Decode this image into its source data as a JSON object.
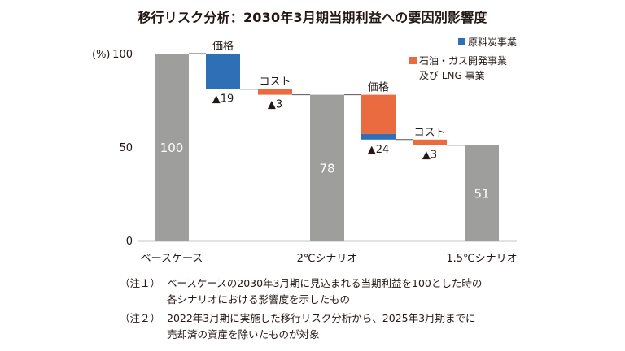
{
  "title": "移行リスク分析：2030年3月期当期利益への要因別影響度",
  "colors": {
    "base": "#9e9e9d",
    "coal": "#2f6fb5",
    "oil": "#ea6b3f",
    "connector": "#555555",
    "axis": "#231815"
  },
  "chart_data": {
    "type": "bar",
    "subtype": "waterfall",
    "title": "移行リスク分析：2030年3月期当期利益への要因別影響度",
    "y_unit": "(%)",
    "ylim": [
      0,
      100
    ],
    "yticks": [
      0,
      50,
      100
    ],
    "grid": false,
    "legend_position": "top-right",
    "legend": [
      {
        "name": "原料炭事業",
        "color": "#2f6fb5"
      },
      {
        "name": "石油・ガス開発事業",
        "name2": "及び LNG 事業",
        "color": "#ea6b3f"
      }
    ],
    "categories": [
      "ベースケース",
      "2℃シナリオ",
      "1.5℃シナリオ"
    ],
    "bars": [
      {
        "kind": "total",
        "value": 100,
        "label": "100",
        "category": "ベースケース"
      },
      {
        "kind": "delta",
        "from": 100,
        "to": 81,
        "label": "▲19",
        "top_label": "価格",
        "segments": [
          {
            "series": "原料炭事業",
            "from": 100,
            "to": 81
          }
        ]
      },
      {
        "kind": "delta",
        "from": 81,
        "to": 78,
        "label": "▲3",
        "top_label": "コスト",
        "segments": [
          {
            "series": "石油・ガス開発事業",
            "from": 81,
            "to": 78
          }
        ]
      },
      {
        "kind": "total",
        "value": 78,
        "label": "78",
        "category": "2℃シナリオ"
      },
      {
        "kind": "delta",
        "from": 78,
        "to": 54,
        "label": "▲24",
        "top_label": "価格",
        "segments": [
          {
            "series": "石油・ガス開発事業",
            "from": 78,
            "to": 57
          },
          {
            "series": "原料炭事業",
            "from": 57,
            "to": 54
          }
        ]
      },
      {
        "kind": "delta",
        "from": 54,
        "to": 51,
        "label": "▲3",
        "top_label": "コスト",
        "segments": [
          {
            "series": "石油・ガス開発事業",
            "from": 54,
            "to": 51
          }
        ]
      },
      {
        "kind": "total",
        "value": 51,
        "label": "51",
        "category": "1.5℃シナリオ"
      }
    ]
  },
  "notes": [
    {
      "tag": "（注１）",
      "lines": [
        "ベースケースの2030年3月期に見込まれる当期利益を100とした時の",
        "各シナリオにおける影響度を示したもの"
      ]
    },
    {
      "tag": "（注２）",
      "lines": [
        "2022年3月期に実施した移行リスク分析から、2025年3月期までに",
        "売却済の資産を除いたものが対象"
      ]
    }
  ]
}
